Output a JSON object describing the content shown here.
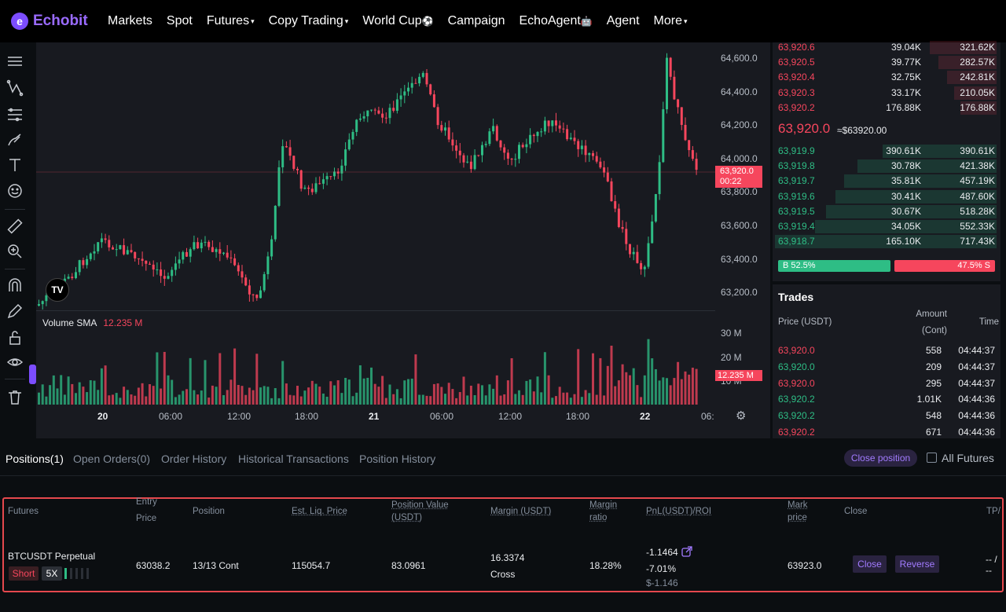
{
  "nav": {
    "logo": "Echobit",
    "items": [
      "Markets",
      "Spot",
      "Futures",
      "Copy Trading",
      "World Cup",
      "Campaign",
      "EchoAgent",
      "Agent",
      "More"
    ],
    "world_cup_emoji": "⚽",
    "echoagent_emoji": "🤖"
  },
  "chart": {
    "price_axis": [
      "64,600.0",
      "64,400.0",
      "64,200.0",
      "64,000.0",
      "63,800.0",
      "63,600.0",
      "63,400.0",
      "63,200.0"
    ],
    "current_price_tag": "63,920.0",
    "countdown": "00:22",
    "volume_label": "Volume SMA",
    "volume_value": "12.235 M",
    "volume_axis": [
      "30 M",
      "20 M",
      "10 M"
    ],
    "volume_tag": "12.235 M",
    "time_axis": [
      "20",
      "06:00",
      "12:00",
      "18:00",
      "21",
      "06:00",
      "12:00",
      "18:00",
      "22",
      "06:"
    ],
    "tv_logo": "TV"
  },
  "orderbook": {
    "asks": [
      {
        "price": "63,920.6",
        "amount": "39.04K",
        "total": "321.62K",
        "depth": 0.3
      },
      {
        "price": "63,920.5",
        "amount": "39.77K",
        "total": "282.57K",
        "depth": 0.26
      },
      {
        "price": "63,920.4",
        "amount": "32.75K",
        "total": "242.81K",
        "depth": 0.22
      },
      {
        "price": "63,920.3",
        "amount": "33.17K",
        "total": "210.05K",
        "depth": 0.19
      },
      {
        "price": "63,920.2",
        "amount": "176.88K",
        "total": "176.88K",
        "depth": 0.16
      }
    ],
    "mid_price": "63,920.0",
    "mid_ref": "≈$63920.00",
    "bids": [
      {
        "price": "63,919.9",
        "amount": "390.61K",
        "total": "390.61K",
        "depth": 0.51
      },
      {
        "price": "63,919.8",
        "amount": "30.78K",
        "total": "421.38K",
        "depth": 0.62
      },
      {
        "price": "63,919.7",
        "amount": "35.81K",
        "total": "457.19K",
        "depth": 0.68
      },
      {
        "price": "63,919.6",
        "amount": "30.41K",
        "total": "487.60K",
        "depth": 0.72
      },
      {
        "price": "63,919.5",
        "amount": "30.67K",
        "total": "518.28K",
        "depth": 0.76
      },
      {
        "price": "63,919.4",
        "amount": "34.05K",
        "total": "552.33K",
        "depth": 0.81
      },
      {
        "price": "63,918.7",
        "amount": "165.10K",
        "total": "717.43K",
        "depth": 0.99
      }
    ],
    "buy_ratio": "B 52.5%",
    "sell_ratio": "47.5% S"
  },
  "trades": {
    "title": "Trades",
    "col_price": "Price (USDT)",
    "col_amount": "Amount",
    "col_amount_unit": "(Cont)",
    "col_time": "Time",
    "rows": [
      {
        "price": "63,920.0",
        "amount": "558",
        "time": "04:44:37",
        "side": "sell"
      },
      {
        "price": "63,920.0",
        "amount": "209",
        "time": "04:44:37",
        "side": "buy"
      },
      {
        "price": "63,920.0",
        "amount": "295",
        "time": "04:44:37",
        "side": "sell"
      },
      {
        "price": "63,920.2",
        "amount": "1.01K",
        "time": "04:44:36",
        "side": "buy"
      },
      {
        "price": "63,920.2",
        "amount": "548",
        "time": "04:44:36",
        "side": "buy"
      },
      {
        "price": "63,920.2",
        "amount": "671",
        "time": "04:44:36",
        "side": "sell"
      }
    ]
  },
  "positions": {
    "tabs": [
      "Positions(1)",
      "Open Orders(0)",
      "Order History",
      "Historical Transactions",
      "Position History"
    ],
    "close_position": "Close position",
    "all_futures": "All Futures",
    "headers": {
      "futures": "Futures",
      "entry_price_1": "Entry",
      "entry_price_2": "Price",
      "position": "Position",
      "est_liq": "Est. Liq. Price",
      "pos_value_1": "Position Value",
      "pos_value_2": "(USDT)",
      "margin": "Margin (USDT)",
      "margin_ratio_1": "Margin",
      "margin_ratio_2": "ratio",
      "pnl": "PnL(USDT)/ROI",
      "mark_1": "Mark",
      "mark_2": "price",
      "close": "Close",
      "tp": "TP/"
    },
    "row": {
      "symbol": "BTCUSDT Perpetual",
      "side": "Short",
      "leverage": "5X",
      "entry_price": "63038.2",
      "position": "13/13 Cont",
      "est_liq": "115054.7",
      "pos_value": "83.0961",
      "margin": "16.3374",
      "margin_mode": "Cross",
      "margin_ratio": "18.28%",
      "pnl": "-1.1464",
      "roi": "-7.01%",
      "pnl_usd": "$-1.146",
      "mark_price": "63923.0",
      "close_btn": "Close",
      "reverse_btn": "Reverse",
      "tp_1": "-- /",
      "tp_2": "--"
    }
  },
  "colors": {
    "up": "#2ebd85",
    "down": "#f6465d",
    "accent": "#7c4dff"
  }
}
